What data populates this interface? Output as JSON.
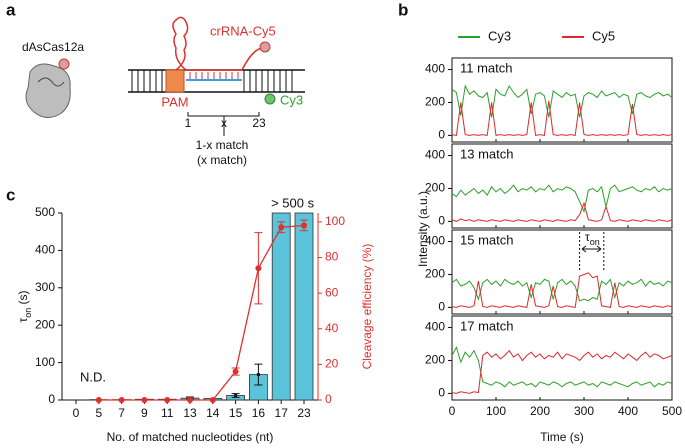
{
  "panel_labels": [
    "a",
    "b",
    "c"
  ],
  "diagram": {
    "protein": "dAsCas12a",
    "rna": "crRNA-Cy5",
    "pam": "PAM",
    "dye": "Cy3",
    "positions": [
      "1",
      "x",
      "23"
    ],
    "caption": [
      "1-x match",
      "(x match)"
    ]
  },
  "chart_data": [
    {
      "type": "bar",
      "xlabel": "No. of matched nucleotides (nt)",
      "ylabel": {
        "symbol": "τ",
        "subscript": "on",
        "unit": "(s)"
      },
      "y2label": "Cleavage efficiency (%)",
      "categories": [
        "0",
        "5",
        "7",
        "9",
        "11",
        "13",
        "14",
        "15",
        "16",
        "17",
        "23"
      ],
      "series": [
        {
          "type": "bar",
          "color": "#5bc4da",
          "values": [
            null,
            1,
            1,
            2,
            2,
            5,
            4,
            12,
            68,
            500,
            500
          ],
          "errors": [
            null,
            null,
            null,
            null,
            null,
            3,
            null,
            5,
            28,
            null,
            null
          ]
        },
        {
          "type": "line",
          "axis": "y2",
          "color": "#e0302e",
          "values": [
            null,
            0,
            0,
            0,
            0,
            0,
            0,
            16,
            74,
            97,
            98
          ],
          "errors": [
            null,
            null,
            null,
            null,
            null,
            null,
            null,
            2,
            20,
            3,
            3
          ]
        }
      ],
      "ylim": [
        0,
        500
      ],
      "yticks": [
        0,
        100,
        200,
        300,
        400,
        500
      ],
      "y2lim": [
        0,
        105
      ],
      "y2ticks": [
        0,
        20,
        40,
        60,
        80,
        100
      ],
      "annotations": [
        "N.D.",
        "> 500 s"
      ]
    },
    {
      "type": "line",
      "xlabel": "Time (s)",
      "ylabel": "Intensity (a.u.)",
      "legend": [
        {
          "name": "Cy3",
          "color": "#2ca02c"
        },
        {
          "name": "Cy5",
          "color": "#e0282a"
        }
      ],
      "x": [
        0,
        10,
        20,
        30,
        40,
        50,
        60,
        70,
        80,
        90,
        100,
        110,
        120,
        130,
        140,
        150,
        160,
        170,
        180,
        190,
        200,
        210,
        220,
        230,
        240,
        250,
        260,
        270,
        280,
        290,
        300,
        310,
        320,
        330,
        340,
        350,
        360,
        370,
        380,
        390,
        400,
        410,
        420,
        430,
        440,
        450,
        460,
        470,
        480,
        490,
        500
      ],
      "xlim": [
        0,
        500
      ],
      "xticks": [
        0,
        100,
        200,
        300,
        400,
        500
      ],
      "ylim": [
        -40,
        470
      ],
      "yticks": [
        0,
        200,
        400
      ],
      "panels": [
        {
          "title": "11 match",
          "series": [
            {
              "values": [
                280,
                260,
                120,
                300,
                250,
                270,
                240,
                230,
                260,
                110,
                280,
                250,
                240,
                300,
                260,
                230,
                250,
                280,
                130,
                250,
                260,
                240,
                110,
                270,
                250,
                230,
                260,
                240,
                250,
                110,
                240,
                260,
                250,
                230,
                270,
                240,
                250,
                260,
                230,
                250,
                240,
                130,
                250,
                260,
                240,
                230,
                250,
                260,
                240,
                250,
                230
              ]
            },
            {
              "values": [
                5,
                0,
                200,
                5,
                0,
                5,
                0,
                5,
                0,
                200,
                0,
                5,
                0,
                5,
                0,
                5,
                0,
                5,
                200,
                0,
                5,
                0,
                210,
                5,
                0,
                5,
                0,
                5,
                0,
                200,
                5,
                0,
                5,
                0,
                5,
                0,
                5,
                0,
                5,
                0,
                5,
                190,
                5,
                0,
                5,
                0,
                5,
                0,
                5,
                0,
                5
              ]
            }
          ]
        },
        {
          "title": "13 match",
          "series": [
            {
              "values": [
                170,
                150,
                190,
                160,
                180,
                200,
                170,
                190,
                160,
                210,
                180,
                200,
                170,
                190,
                220,
                180,
                200,
                190,
                210,
                180,
                200,
                190,
                220,
                180,
                200,
                190,
                210,
                200,
                180,
                120,
                60,
                190,
                200,
                180,
                210,
                90,
                200,
                220,
                180,
                190,
                200,
                210,
                190,
                180,
                200,
                190,
                210,
                180,
                200,
                190,
                200
              ]
            },
            {
              "values": [
                10,
                0,
                15,
                5,
                10,
                0,
                10,
                5,
                0,
                10,
                5,
                0,
                10,
                5,
                0,
                10,
                5,
                0,
                10,
                5,
                0,
                10,
                5,
                0,
                10,
                5,
                0,
                10,
                5,
                40,
                110,
                10,
                5,
                0,
                10,
                90,
                5,
                0,
                10,
                5,
                0,
                10,
                5,
                0,
                10,
                5,
                0,
                10,
                5,
                0,
                10
              ]
            }
          ]
        },
        {
          "title": "15 match",
          "annotation": {
            "symbol": "τ",
            "subscript": "on"
          },
          "series": [
            {
              "values": [
                150,
                170,
                130,
                140,
                160,
                120,
                50,
                150,
                170,
                140,
                160,
                130,
                170,
                150,
                140,
                160,
                130,
                150,
                60,
                150,
                140,
                170,
                160,
                50,
                150,
                170,
                140,
                160,
                130,
                40,
                50,
                40,
                60,
                50,
                160,
                140,
                170,
                60,
                150,
                130,
                160,
                140,
                150,
                170,
                130,
                160,
                140,
                150,
                130,
                160,
                150
              ]
            },
            {
              "values": [
                5,
                0,
                10,
                5,
                0,
                10,
                160,
                5,
                0,
                10,
                5,
                0,
                10,
                5,
                0,
                10,
                5,
                0,
                140,
                10,
                5,
                0,
                10,
                130,
                5,
                0,
                10,
                5,
                0,
                190,
                200,
                210,
                180,
                190,
                10,
                5,
                0,
                150,
                5,
                0,
                10,
                5,
                0,
                10,
                5,
                0,
                10,
                5,
                0,
                10,
                5
              ]
            }
          ]
        },
        {
          "title": "17 match",
          "series": [
            {
              "values": [
                230,
                280,
                190,
                250,
                220,
                260,
                200,
                70,
                60,
                50,
                70,
                60,
                40,
                70,
                50,
                60,
                70,
                50,
                60,
                40,
                70,
                60,
                50,
                70,
                60,
                40,
                60,
                70,
                50,
                60,
                70,
                50,
                60,
                40,
                70,
                60,
                50,
                70,
                60,
                50,
                40,
                60,
                70,
                50,
                60,
                70,
                40,
                60,
                50,
                70,
                60
              ]
            },
            {
              "values": [
                5,
                0,
                10,
                5,
                0,
                10,
                5,
                230,
                250,
                220,
                240,
                210,
                230,
                260,
                220,
                240,
                200,
                230,
                250,
                220,
                240,
                210,
                230,
                220,
                250,
                210,
                240,
                230,
                220,
                200,
                230,
                250,
                220,
                240,
                210,
                230,
                220,
                250,
                230,
                210,
                240,
                220,
                200,
                230,
                250,
                220,
                240,
                230,
                210,
                220,
                230
              ]
            }
          ]
        }
      ]
    }
  ]
}
